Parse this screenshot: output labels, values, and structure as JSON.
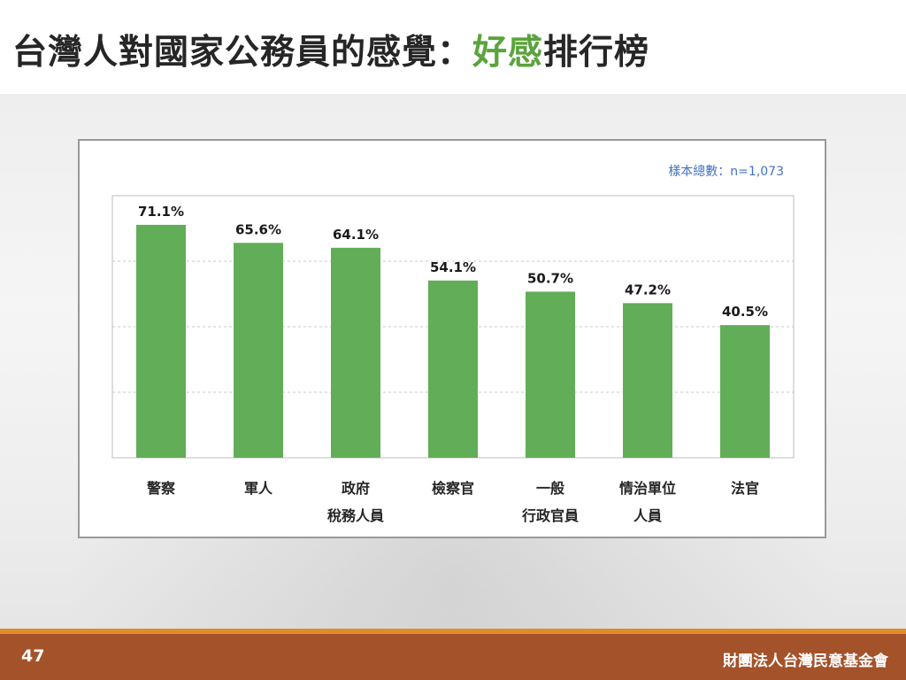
{
  "title": {
    "main": "台灣人對國家公務員的感覺：",
    "accent": "好感",
    "tail": "排行榜"
  },
  "sample_note": "樣本總數：n=1,073",
  "footer": {
    "page_number": "47",
    "organization": "財團法人台灣民意基金會"
  },
  "colors": {
    "bar": "#62ad57",
    "accent": "#5aa33d",
    "footer": "#a4522a",
    "footer_line": "#e08b2c",
    "note": "#4472c4"
  },
  "chart_data": {
    "type": "bar",
    "categories": [
      [
        "警察"
      ],
      [
        "軍人"
      ],
      [
        "政府",
        "稅務人員"
      ],
      [
        "檢察官"
      ],
      [
        "一般",
        "行政官員"
      ],
      [
        "情治單位",
        "人員"
      ],
      [
        "法官"
      ]
    ],
    "values": [
      71.1,
      65.6,
      64.1,
      54.1,
      50.7,
      47.2,
      40.5
    ],
    "data_labels": [
      "71.1%",
      "65.6%",
      "64.1%",
      "54.1%",
      "50.7%",
      "47.2%",
      "40.5%"
    ],
    "ylim": [
      0,
      80
    ],
    "grid": true,
    "title": "",
    "xlabel": "",
    "ylabel": ""
  }
}
